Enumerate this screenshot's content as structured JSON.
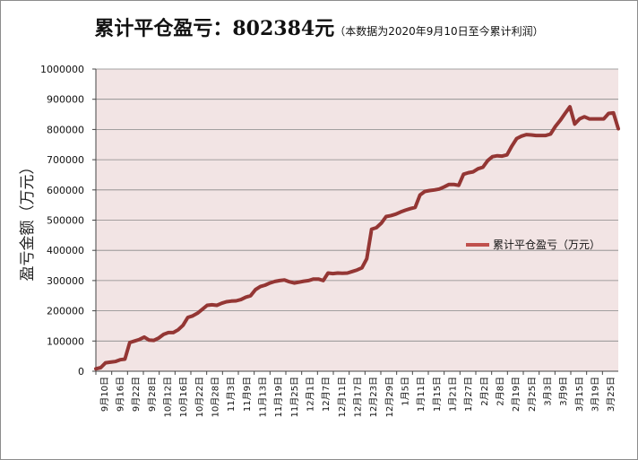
{
  "title": {
    "main": "累计平仓盈亏：802384元",
    "sub": "（本数据为2020年9月10日至今累计利润）"
  },
  "colors": {
    "plot_bg": "#f2e4e4",
    "line": "#943634",
    "legend_line": "#c0504d",
    "grid": "#888888"
  },
  "chart_data": {
    "type": "line",
    "title": "累计平仓盈亏：802384元",
    "subtitle": "（本数据为2020年9月10日至今累计利润）",
    "xlabel": "",
    "ylabel": "盈亏金额（万元）",
    "ylim": [
      0,
      1000000
    ],
    "yticks": [
      "0",
      "100000",
      "200000",
      "300000",
      "400000",
      "500000",
      "600000",
      "700000",
      "800000",
      "900000",
      "1000000"
    ],
    "xticks": [
      "9月10日",
      "9月16日",
      "9月22日",
      "9月28日",
      "10月12日",
      "10月16日",
      "10月22日",
      "10月28日",
      "11月3日",
      "11月9日",
      "11月13日",
      "11月19日",
      "11月25日",
      "12月1日",
      "12月7日",
      "12月11日",
      "12月17日",
      "12月23日",
      "12月29日",
      "1月5日",
      "1月11日",
      "1月15日",
      "1月21日",
      "1月27日",
      "2月2日",
      "2月8日",
      "2月19日",
      "2月25日",
      "3月3日",
      "3月9日",
      "3月15日",
      "3月19日",
      "3月25日"
    ],
    "grid": "horizontal",
    "legend_position": "right",
    "series": [
      {
        "name": "累计平仓盈亏（万元）",
        "values": [
          8000,
          12000,
          28000,
          30000,
          32000,
          38000,
          40000,
          95000,
          100000,
          105000,
          113000,
          103000,
          102000,
          110000,
          122000,
          128000,
          128000,
          137000,
          152000,
          178000,
          183000,
          192000,
          205000,
          218000,
          220000,
          218000,
          225000,
          230000,
          232000,
          233000,
          237000,
          245000,
          250000,
          270000,
          280000,
          285000,
          292000,
          297000,
          300000,
          302000,
          296000,
          292000,
          295000,
          298000,
          300000,
          305000,
          305000,
          300000,
          325000,
          323000,
          325000,
          324000,
          325000,
          330000,
          335000,
          342000,
          372000,
          470000,
          475000,
          490000,
          512000,
          515000,
          520000,
          527000,
          533000,
          538000,
          542000,
          583000,
          595000,
          598000,
          600000,
          603000,
          610000,
          618000,
          618000,
          615000,
          652000,
          657000,
          660000,
          670000,
          675000,
          697000,
          710000,
          713000,
          712000,
          716000,
          745000,
          770000,
          778000,
          783000,
          782000,
          780000,
          780000,
          780000,
          785000,
          810000,
          830000,
          853000,
          875000,
          818000,
          835000,
          842000,
          835000,
          835000,
          835000,
          835000,
          853000,
          855000,
          802384
        ]
      }
    ]
  }
}
